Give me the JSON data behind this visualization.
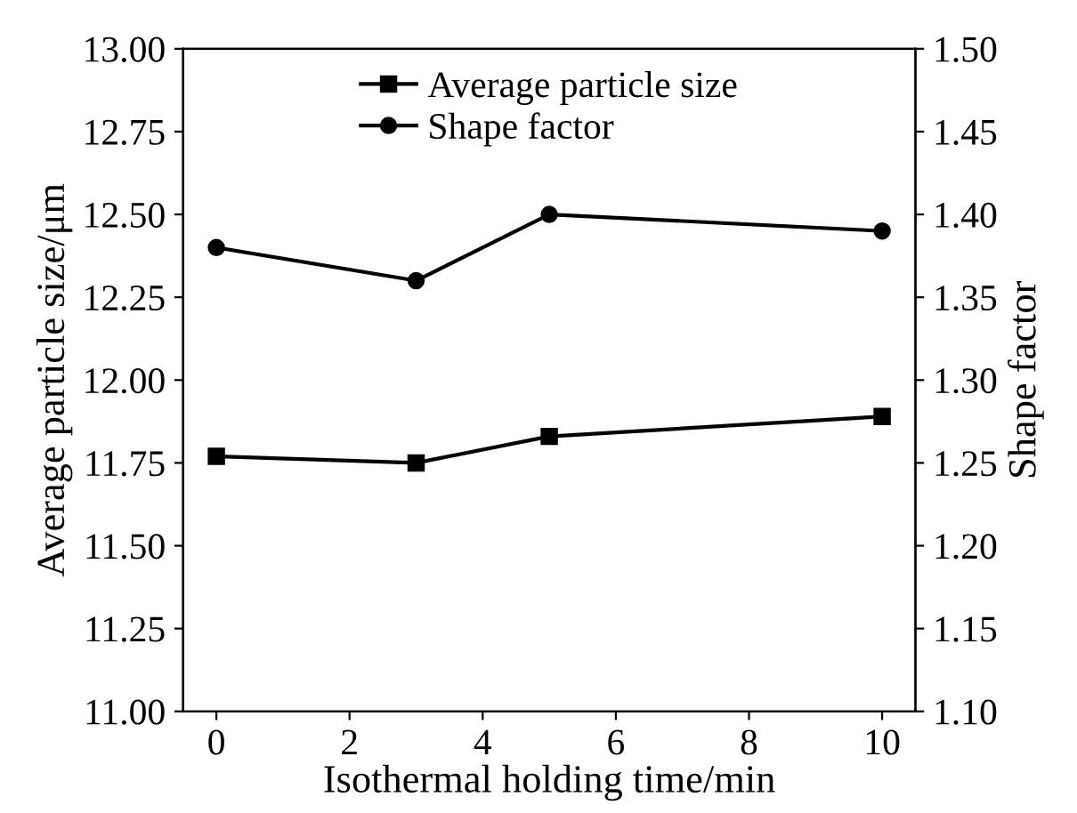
{
  "chart_data": {
    "type": "line",
    "xlabel": "Isothermal holding time/min",
    "ylabel": "Average particle size/μm",
    "y2label": "Shape factor",
    "x": [
      0,
      3,
      5,
      10
    ],
    "series": [
      {
        "name": "Average particle size",
        "color": "#000000",
        "values": [
          11.77,
          11.75,
          11.83,
          11.89
        ],
        "marker": "square"
      },
      {
        "name": "Shape factor",
        "color": "#000000",
        "values": [
          1.38,
          1.36,
          1.4,
          1.39
        ],
        "marker": "circle",
        "axis": "y2"
      }
    ],
    "xlim": [
      -0.5,
      10.5
    ],
    "xticks": [
      0,
      2,
      4,
      6,
      8,
      10
    ],
    "ylim": [
      11.0,
      13.0
    ],
    "yticks": [
      {
        "value": 11.0,
        "label": "11.00"
      },
      {
        "value": 11.25,
        "label": "11.25"
      },
      {
        "value": 11.5,
        "label": "11.50"
      },
      {
        "value": 11.75,
        "label": "11.75"
      },
      {
        "value": 12.0,
        "label": "12.00"
      },
      {
        "value": 12.25,
        "label": "12.25"
      },
      {
        "value": 12.5,
        "label": "12.50"
      },
      {
        "value": 12.75,
        "label": "12.75"
      },
      {
        "value": 13.0,
        "label": "13.00"
      }
    ],
    "y2lim": [
      1.1,
      1.5
    ],
    "y2ticks": [
      {
        "value": 1.1,
        "label": "1.10"
      },
      {
        "value": 1.15,
        "label": "1.15"
      },
      {
        "value": 1.2,
        "label": "1.20"
      },
      {
        "value": 1.25,
        "label": "1.25"
      },
      {
        "value": 1.3,
        "label": "1.30"
      },
      {
        "value": 1.35,
        "label": "1.35"
      },
      {
        "value": 1.4,
        "label": "1.40"
      },
      {
        "value": 1.45,
        "label": "1.45"
      },
      {
        "value": 1.5,
        "label": "1.50"
      }
    ],
    "grid": false,
    "legend": "top",
    "line_style": "solid"
  }
}
